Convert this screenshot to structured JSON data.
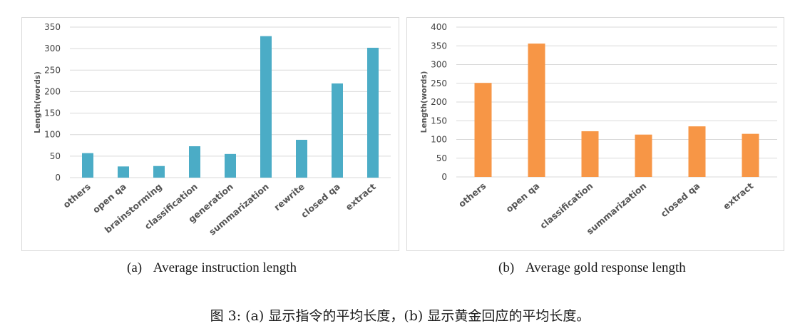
{
  "chart_data": [
    {
      "type": "bar",
      "ylabel": "Length(words)",
      "ylim": [
        0,
        350
      ],
      "yticks": [
        0,
        50,
        100,
        150,
        200,
        250,
        300,
        350
      ],
      "grid": true,
      "color": "#4bacc6",
      "categories": [
        "others",
        "open qa",
        "brainstorming",
        "classification",
        "generation",
        "summarization",
        "rewrite",
        "closed qa",
        "extract"
      ],
      "values": [
        57,
        26,
        27,
        73,
        55,
        329,
        88,
        219,
        302
      ]
    },
    {
      "type": "bar",
      "ylabel": "Length(words)",
      "ylim": [
        0,
        400
      ],
      "yticks": [
        0,
        50,
        100,
        150,
        200,
        250,
        300,
        350,
        400
      ],
      "grid": true,
      "color": "#f79646",
      "categories": [
        "others",
        "open qa",
        "classification",
        "summarization",
        "closed qa",
        "extract"
      ],
      "values": [
        251,
        356,
        122,
        113,
        135,
        115
      ]
    }
  ],
  "subcaptions": [
    {
      "label": "(a)",
      "text": "Average instruction length"
    },
    {
      "label": "(b)",
      "text": "Average gold response length"
    }
  ],
  "caption": "图 3: (a) 显示指令的平均长度，(b) 显示黄金回应的平均长度。"
}
